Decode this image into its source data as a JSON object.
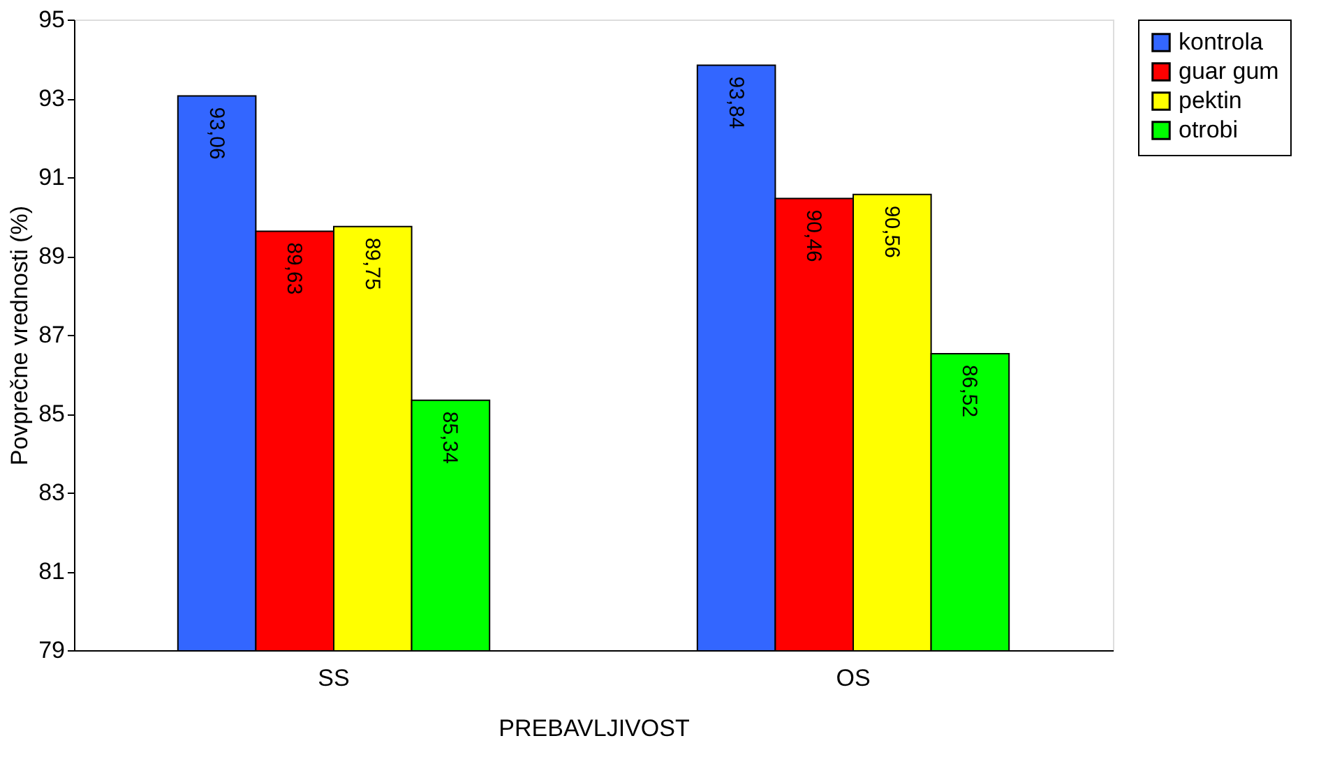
{
  "chart_data": {
    "type": "bar",
    "xlabel": "PREBAVLJIVOST",
    "ylabel": "Povprečne vrednosti (%)",
    "categories": [
      "SS",
      "OS"
    ],
    "series": [
      {
        "name": "kontrola",
        "color": "#3366ff",
        "values": [
          93.06,
          93.84
        ],
        "value_labels": [
          "93,06",
          "93,84"
        ]
      },
      {
        "name": "guar gum",
        "color": "#ff0000",
        "values": [
          89.63,
          90.46
        ],
        "value_labels": [
          "89,63",
          "90,46"
        ]
      },
      {
        "name": "pektin",
        "color": "#ffff00",
        "values": [
          89.75,
          90.56
        ],
        "value_labels": [
          "89,75",
          "90,56"
        ]
      },
      {
        "name": "otrobi",
        "color": "#00ff00",
        "values": [
          85.34,
          86.52
        ],
        "value_labels": [
          "85,34",
          "86,52"
        ]
      }
    ],
    "ylim": [
      79,
      95
    ],
    "yticks": [
      79,
      81,
      83,
      85,
      87,
      89,
      91,
      93,
      95
    ],
    "grid": false,
    "legend": "top right"
  }
}
